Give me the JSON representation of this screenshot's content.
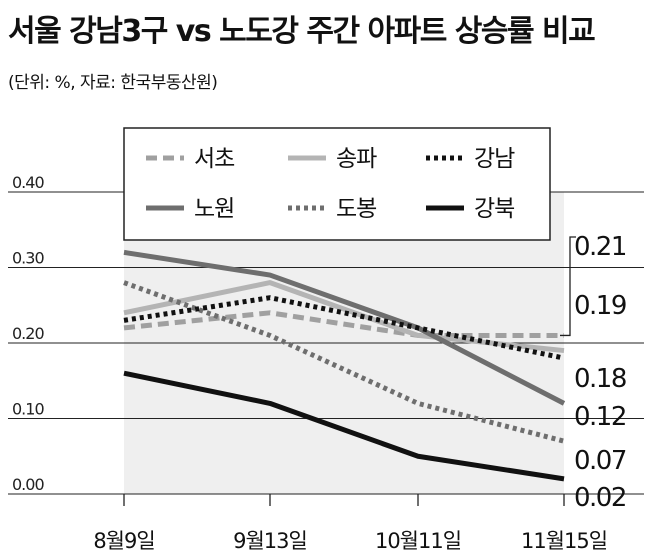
{
  "title": "서울 강남3구 vs 노도강 주간 아파트 상승률 비교",
  "subtitle": "(단위: %, 자료: 한국부동산원)",
  "chart_data": {
    "type": "line",
    "categories": [
      "8월9일",
      "9월13일",
      "10월11일",
      "11월15일"
    ],
    "ylim": [
      0,
      0.4
    ],
    "yticks": [
      "0.00",
      "0.10",
      "0.20",
      "0.30",
      "0.40"
    ],
    "grid": true,
    "legend_position": "top",
    "series": [
      {
        "name": "서초",
        "values": [
          0.22,
          0.24,
          0.21,
          0.21
        ],
        "color": "#a0a0a0",
        "dash": "dashed",
        "end_label": "0.21"
      },
      {
        "name": "송파",
        "values": [
          0.24,
          0.28,
          0.21,
          0.19
        ],
        "color": "#b4b4b4",
        "dash": "solid",
        "end_label": "0.19"
      },
      {
        "name": "강남",
        "values": [
          0.23,
          0.26,
          0.22,
          0.18
        ],
        "color": "#111111",
        "dash": "dotted",
        "end_label": "0.18"
      },
      {
        "name": "노원",
        "values": [
          0.32,
          0.29,
          0.22,
          0.12
        ],
        "color": "#6e6e6e",
        "dash": "solid",
        "end_label": "0.12"
      },
      {
        "name": "도봉",
        "values": [
          0.28,
          0.21,
          0.12,
          0.07
        ],
        "color": "#6e6e6e",
        "dash": "dotted",
        "end_label": "0.07"
      },
      {
        "name": "강북",
        "values": [
          0.16,
          0.12,
          0.05,
          0.02
        ],
        "color": "#111111",
        "dash": "solid",
        "end_label": "0.02"
      }
    ]
  }
}
